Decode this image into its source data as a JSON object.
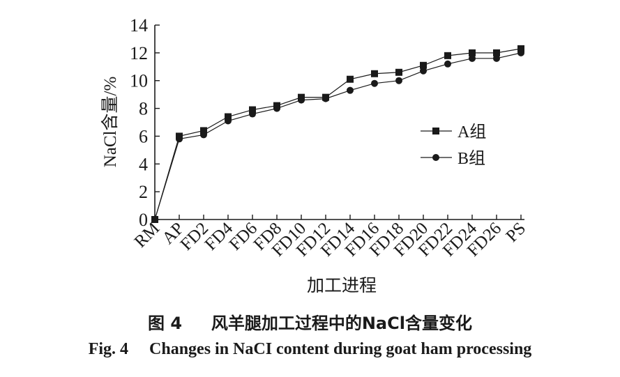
{
  "chart_data": {
    "type": "line",
    "ylabel": "NaCl含量/%",
    "xlabel": "加工进程",
    "ylim": [
      0,
      14
    ],
    "yticks": [
      0,
      2,
      4,
      6,
      8,
      10,
      12,
      14
    ],
    "categories": [
      "RM",
      "AP",
      "FD2",
      "FD4",
      "FD6",
      "FD8",
      "FD10",
      "FD12",
      "FD14",
      "FD16",
      "FD18",
      "FD20",
      "FD22",
      "FD24",
      "FD26",
      "PS"
    ],
    "series": [
      {
        "name": "A组",
        "marker": "square",
        "values": [
          0,
          6.0,
          6.4,
          7.4,
          7.9,
          8.2,
          8.8,
          8.8,
          10.1,
          10.5,
          10.6,
          11.1,
          11.8,
          12.0,
          12.0,
          12.3
        ]
      },
      {
        "name": "B组",
        "marker": "circle",
        "values": [
          0,
          5.8,
          6.1,
          7.1,
          7.6,
          8.0,
          8.6,
          8.7,
          9.3,
          9.8,
          10.0,
          10.7,
          11.2,
          11.6,
          11.6,
          12.0
        ]
      }
    ],
    "legend_position": "right-middle",
    "grid": false,
    "line_color": "#1a1a1a"
  },
  "caption": {
    "cn": "图 4     风羊腿加工过程中的NaCl含量变化",
    "en": "Fig. 4     Changes in NaCI content during goat ham processing"
  }
}
